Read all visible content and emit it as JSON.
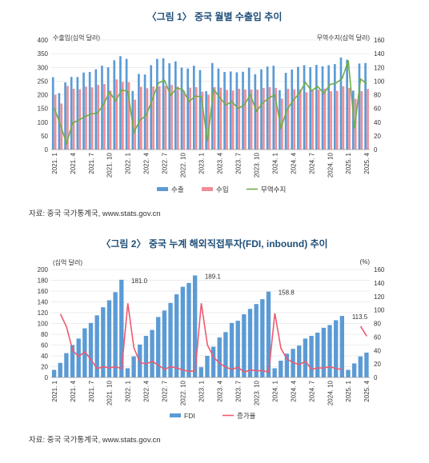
{
  "chart_data": [
    {
      "type": "bar",
      "title": "〈그림 1〉 중국 월별 수출입 추이",
      "ylabel_left": "수출입(십억 달러)",
      "ylabel_right": "무역수지(십억 달러)",
      "ylim_left": [
        0,
        400
      ],
      "ylim_right": [
        0,
        160
      ],
      "yticks_left": [
        "0",
        "50",
        "100",
        "150",
        "200",
        "250",
        "300",
        "350",
        "400"
      ],
      "yticks_right": [
        "0",
        "20",
        "40",
        "60",
        "80",
        "100",
        "120",
        "140",
        "160"
      ],
      "categories": [
        "2021.1",
        "2021.2",
        "2021.3",
        "2021.4",
        "2021.5",
        "2021.6",
        "2021.7",
        "2021.8",
        "2021.9",
        "2021.10",
        "2021.11",
        "2021.12",
        "2022.1",
        "2022.2",
        "2022.3",
        "2022.4",
        "2022.5",
        "2022.6",
        "2022.7",
        "2022.8",
        "2022.9",
        "2022.10",
        "2022.11",
        "2022.12",
        "2023.1",
        "2023.2",
        "2023.3",
        "2023.4",
        "2023.5",
        "2023.6",
        "2023.7",
        "2023.8",
        "2023.9",
        "2023.10",
        "2023.11",
        "2023.12",
        "2024.1",
        "2024.2",
        "2024.3",
        "2024.4",
        "2024.5",
        "2024.6",
        "2024.7",
        "2024.8",
        "2024.9",
        "2024.10",
        "2024.11",
        "2024.12",
        "2025.1",
        "2025.2",
        "2025.3",
        "2025.4"
      ],
      "xtick_labels": [
        "2021. 1",
        "2021. 4",
        "2021. 7",
        "2021. 10",
        "2022. 1",
        "2022. 4",
        "2022. 7",
        "2022. 10",
        "2023. 1",
        "2023. 4",
        "2023. 7",
        "2023. 10",
        "2024. 1",
        "2024. 4",
        "2024. 7",
        "2024. 10",
        "2025. 1",
        "2025. 4"
      ],
      "series": [
        {
          "name": "수출",
          "axis": "left",
          "kind": "bar",
          "color": "#5b9bd5",
          "values": [
            264,
            206,
            245,
            265,
            265,
            281,
            283,
            293,
            306,
            300,
            326,
            341,
            331,
            214,
            276,
            274,
            308,
            331,
            333,
            315,
            322,
            299,
            296,
            306,
            290,
            213,
            316,
            296,
            283,
            285,
            282,
            284,
            299,
            275,
            293,
            303,
            306,
            217,
            280,
            292,
            302,
            308,
            301,
            309,
            304,
            308,
            312,
            336,
            328,
            215,
            314,
            316
          ]
        },
        {
          "name": "수입",
          "axis": "left",
          "kind": "bar",
          "color": "#f08d96",
          "values": [
            200,
            168,
            232,
            222,
            220,
            230,
            227,
            236,
            239,
            215,
            256,
            247,
            246,
            182,
            229,
            224,
            230,
            231,
            232,
            236,
            230,
            214,
            226,
            228,
            211,
            200,
            228,
            226,
            218,
            215,
            222,
            219,
            219,
            219,
            225,
            228,
            225,
            186,
            222,
            220,
            220,
            209,
            216,
            218,
            222,
            213,
            214,
            231,
            225,
            185,
            213,
            221
          ]
        },
        {
          "name": "무역수지",
          "axis": "right",
          "kind": "line",
          "color": "#70ad47",
          "values": [
            61,
            36,
            9,
            39,
            43,
            48,
            52,
            53,
            65,
            84,
            71,
            87,
            85,
            25,
            43,
            50,
            73,
            97,
            101,
            79,
            90,
            87,
            70,
            78,
            77,
            12,
            88,
            76,
            65,
            70,
            60,
            65,
            80,
            56,
            68,
            75,
            80,
            32,
            58,
            72,
            82,
            98,
            86,
            92,
            82,
            95,
            97,
            104,
            130,
            31,
            103,
            96
          ]
        }
      ],
      "legend_position": "bottom",
      "source": "자료: 중국 국가통계국, www.stats.gov.cn"
    },
    {
      "type": "bar",
      "title": "〈그림 2〉 중국 누계 해외직접투자(FDI, inbound) 추이",
      "ylabel_left": "(십억 달러)",
      "ylabel_right": "(%)",
      "ylim_left": [
        0,
        200
      ],
      "ylim_right": [
        0,
        160
      ],
      "yticks_left": [
        "0",
        "20",
        "40",
        "60",
        "80",
        "100",
        "120",
        "140",
        "160",
        "180",
        "200"
      ],
      "yticks_right": [
        "0",
        "20",
        "40",
        "60",
        "80",
        "100",
        "120",
        "140",
        "160"
      ],
      "categories": [
        "2021.1",
        "2021.2",
        "2021.3",
        "2021.4",
        "2021.5",
        "2021.6",
        "2021.7",
        "2021.8",
        "2021.9",
        "2021.10",
        "2021.11",
        "2021.12",
        "2022.1",
        "2022.2",
        "2022.3",
        "2022.4",
        "2022.5",
        "2022.6",
        "2022.7",
        "2022.8",
        "2022.9",
        "2022.10",
        "2022.11",
        "2022.12",
        "2023.1",
        "2023.2",
        "2023.3",
        "2023.4",
        "2023.5",
        "2023.6",
        "2023.7",
        "2023.8",
        "2023.9",
        "2023.10",
        "2023.11",
        "2023.12",
        "2024.1",
        "2024.2",
        "2024.3",
        "2024.4",
        "2024.5",
        "2024.6",
        "2024.7",
        "2024.8",
        "2024.9",
        "2024.10",
        "2024.11",
        "2024.12",
        "2025.1",
        "2025.2",
        "2025.3",
        "2025.4"
      ],
      "xtick_labels": [
        "2021. 1",
        "2021. 4",
        "2021. 7",
        "2021. 10",
        "2022. 1",
        "2022. 4",
        "2022. 7",
        "2022. 10",
        "2023. 1",
        "2023. 4",
        "2023. 7",
        "2023. 10",
        "2024. 1",
        "2024. 4",
        "2024. 7",
        "2024. 10",
        "2025. 1",
        "2025. 4"
      ],
      "series": [
        {
          "name": "FDI",
          "axis": "left",
          "kind": "bar",
          "color": "#5b9bd5",
          "values": [
            14,
            27,
            45,
            60,
            72,
            91,
            101,
            115,
            130,
            143,
            158,
            181,
            17,
            39,
            61,
            77,
            88,
            112,
            124,
            138,
            154,
            168,
            175,
            189,
            19,
            40,
            57,
            74,
            84,
            101,
            105,
            117,
            127,
            136,
            145,
            159,
            17,
            31,
            44,
            53,
            59,
            72,
            77,
            83,
            92,
            97,
            106,
            114,
            14,
            26,
            39,
            46
          ]
        },
        {
          "name": "증가율",
          "axis": "right",
          "kind": "line",
          "color": "#ee5a6e",
          "values": [
            null,
            94,
            75,
            40,
            31,
            38,
            26,
            13,
            16,
            14,
            16,
            13,
            110,
            44,
            22,
            20,
            24,
            18,
            12,
            16,
            14,
            11,
            9,
            10,
            110,
            48,
            30,
            21,
            15,
            12,
            15,
            8,
            11,
            10,
            10,
            8,
            95,
            43,
            27,
            22,
            19,
            24,
            12,
            14,
            14,
            16,
            13,
            12,
            null,
            null,
            76,
            61
          ]
        }
      ],
      "data_labels": [
        {
          "category": "2021.12",
          "text": "181.0"
        },
        {
          "category": "2022.12",
          "text": "189.1"
        },
        {
          "category": "2023.12",
          "text": "158.8"
        },
        {
          "category": "2024.12",
          "text": "113.5"
        }
      ],
      "legend_position": "bottom",
      "source": "자료: 중국 국가통계국, www.stats.gov.cn"
    }
  ]
}
